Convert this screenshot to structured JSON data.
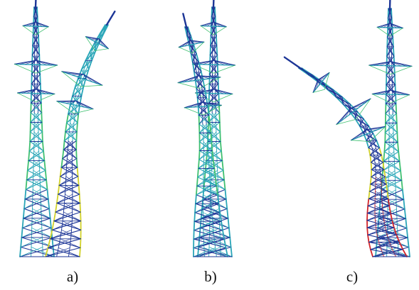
{
  "panels": [
    {
      "label": "a)",
      "sway": "right"
    },
    {
      "label": "b)",
      "sway": "slight-left"
    },
    {
      "label": "c)",
      "sway": "left"
    }
  ],
  "colors": {
    "blue": "#1c3596",
    "teal": "#2aa6b8",
    "green": "#3fc070",
    "yellow": "#d2d22a",
    "red": "#d4242a"
  }
}
